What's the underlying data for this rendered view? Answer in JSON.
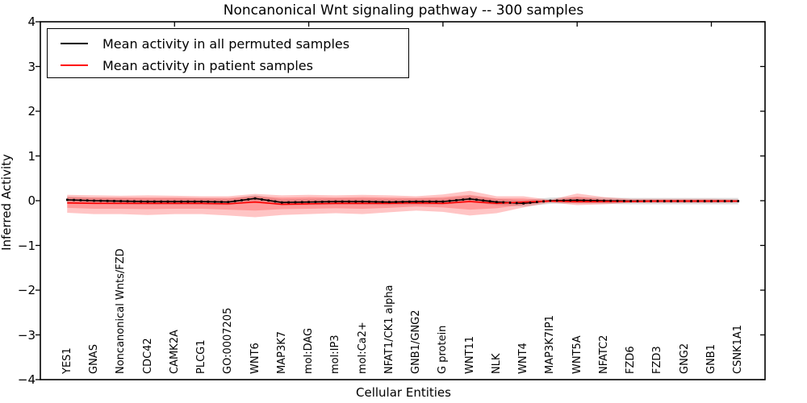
{
  "chart_data": {
    "type": "line",
    "title": "Noncanonical Wnt signaling pathway -- 300 samples",
    "xlabel": "Cellular Entities",
    "ylabel": "Inferred Activity",
    "ylim": [
      -4,
      4
    ],
    "ytick_values": [
      4,
      3,
      2,
      1,
      0,
      -1,
      -2,
      -3,
      -4
    ],
    "ytick_labels": [
      "4",
      "3",
      "2",
      "1",
      "0",
      "−1",
      "−2",
      "−3",
      "−4"
    ],
    "xlim": [
      0,
      27
    ],
    "xtick_data_positions": [
      5,
      10,
      15,
      20,
      25
    ],
    "grid": false,
    "legend_position": "upper left",
    "categories": [
      "YES1",
      "GNAS",
      "Noncanonical Wnts/FZD",
      "CDC42",
      "CAMK2A",
      "PLCG1",
      "GO:0007205",
      "WNT6",
      "MAP3K7",
      "mol:DAG",
      "mol:IP3",
      "mol:Ca2+",
      "NFAT1/CK1 alpha",
      "GNB1/GNG2",
      "G protein",
      "WNT11",
      "NLK",
      "WNT4",
      "MAP3K7IP1",
      "WNT5A",
      "NFATC2",
      "FZD6",
      "FZD3",
      "GNG2",
      "GNB1",
      "CSNK1A1"
    ],
    "series": [
      {
        "name": "Mean activity in all permuted samples",
        "color": "#000000",
        "band_color": "rgba(130,130,130,0.28)",
        "values": [
          0.02,
          0.0,
          -0.01,
          -0.02,
          -0.02,
          -0.02,
          -0.03,
          0.05,
          -0.04,
          -0.03,
          -0.02,
          -0.02,
          -0.03,
          -0.02,
          -0.02,
          0.04,
          -0.03,
          -0.06,
          0.0,
          0.01,
          0.0,
          -0.01,
          -0.01,
          -0.01,
          -0.01,
          -0.01
        ],
        "band_upper": [
          0.09,
          0.07,
          0.06,
          0.05,
          0.05,
          0.05,
          0.04,
          0.12,
          0.03,
          0.04,
          0.05,
          0.05,
          0.04,
          0.05,
          0.05,
          0.11,
          0.04,
          0.01,
          0.07,
          0.08,
          0.07,
          0.06,
          0.06,
          0.06,
          0.06,
          0.06
        ],
        "band_lower": [
          -0.05,
          -0.07,
          -0.08,
          -0.09,
          -0.09,
          -0.09,
          -0.1,
          -0.02,
          -0.11,
          -0.1,
          -0.09,
          -0.09,
          -0.1,
          -0.09,
          -0.09,
          -0.03,
          -0.1,
          -0.13,
          -0.07,
          -0.06,
          -0.07,
          -0.08,
          -0.08,
          -0.08,
          -0.08,
          -0.08
        ]
      },
      {
        "name": "Mean activity in patient samples",
        "color": "#ff0000",
        "band_color": "rgba(255,40,40,0.27)",
        "values": [
          -0.05,
          -0.06,
          -0.06,
          -0.06,
          -0.06,
          -0.06,
          -0.07,
          -0.03,
          -0.08,
          -0.07,
          -0.06,
          -0.06,
          -0.06,
          -0.05,
          -0.06,
          -0.02,
          -0.06,
          -0.03,
          -0.01,
          -0.02,
          -0.02,
          -0.02,
          -0.01,
          -0.01,
          -0.01,
          -0.01
        ],
        "band_upper": [
          0.13,
          0.12,
          0.11,
          0.12,
          0.11,
          0.1,
          0.1,
          0.15,
          0.12,
          0.13,
          0.12,
          0.13,
          0.12,
          0.1,
          0.14,
          0.22,
          0.1,
          0.1,
          0.02,
          0.16,
          0.08,
          0.04,
          0.04,
          0.04,
          0.04,
          0.03
        ],
        "band_lower": [
          -0.27,
          -0.3,
          -0.3,
          -0.32,
          -0.3,
          -0.3,
          -0.33,
          -0.37,
          -0.32,
          -0.3,
          -0.28,
          -0.3,
          -0.26,
          -0.22,
          -0.25,
          -0.33,
          -0.28,
          -0.15,
          -0.04,
          -0.1,
          -0.08,
          -0.05,
          -0.05,
          -0.05,
          -0.05,
          -0.04
        ],
        "inner_band_upper": [
          0.08,
          0.07,
          0.07,
          0.07,
          0.07,
          0.06,
          0.06,
          0.1,
          0.07,
          0.08,
          0.07,
          0.08,
          0.07,
          0.06,
          0.08,
          0.13,
          0.05,
          0.05,
          0.01,
          0.09,
          0.03,
          0.02,
          0.02,
          0.02,
          0.02,
          0.01
        ],
        "inner_band_lower": [
          -0.16,
          -0.18,
          -0.18,
          -0.19,
          -0.18,
          -0.18,
          -0.2,
          -0.22,
          -0.19,
          -0.18,
          -0.17,
          -0.18,
          -0.16,
          -0.13,
          -0.15,
          -0.2,
          -0.17,
          -0.09,
          -0.02,
          -0.06,
          -0.05,
          -0.03,
          -0.03,
          -0.03,
          -0.03,
          -0.02
        ]
      }
    ]
  },
  "legend": {
    "items": [
      {
        "label": "Mean activity in all permuted samples",
        "color": "#000000"
      },
      {
        "label": "Mean activity in patient samples",
        "color": "#ff0000"
      }
    ]
  }
}
